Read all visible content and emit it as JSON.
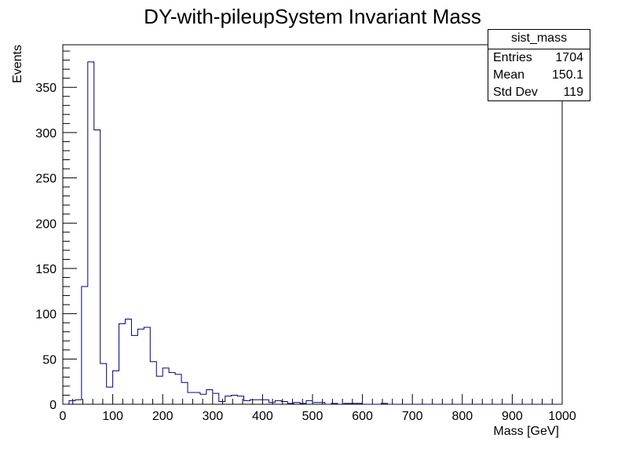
{
  "chart_data": {
    "type": "histogram",
    "title": "DY-with-pileupSystem Invariant Mass",
    "xlabel": "Mass [GeV]",
    "ylabel": "Events",
    "xlim": [
      0,
      1000
    ],
    "ylim": [
      0,
      397
    ],
    "bin_width": 12.5,
    "x_ticks": [
      0,
      100,
      200,
      300,
      400,
      500,
      600,
      700,
      800,
      900,
      1000
    ],
    "y_ticks": [
      0,
      50,
      100,
      150,
      200,
      250,
      300,
      350
    ],
    "grid": false,
    "line_color": "#000080",
    "values": [
      0,
      4,
      5,
      130,
      378,
      303,
      45,
      19,
      37,
      89,
      94,
      76,
      83,
      85,
      47,
      31,
      40,
      35,
      33,
      24,
      13,
      13,
      11,
      16,
      12,
      3,
      9,
      10,
      9,
      4,
      5,
      5,
      5,
      2,
      4,
      3,
      1,
      2,
      1,
      4,
      2,
      2,
      0,
      1,
      0,
      1,
      1,
      1,
      0,
      0,
      0,
      1,
      0,
      0,
      0,
      0,
      0,
      0,
      0,
      0,
      0,
      0,
      0,
      0,
      0,
      0,
      0,
      0,
      0,
      0,
      0,
      0,
      0,
      0,
      0,
      0,
      0,
      0,
      0,
      0
    ]
  },
  "stats_box": {
    "name": "sist_mass",
    "entries_label": "Entries",
    "entries_value": "1704",
    "mean_label": "Mean",
    "mean_value": "150.1",
    "stddev_label": "Std Dev",
    "stddev_value": "119"
  }
}
